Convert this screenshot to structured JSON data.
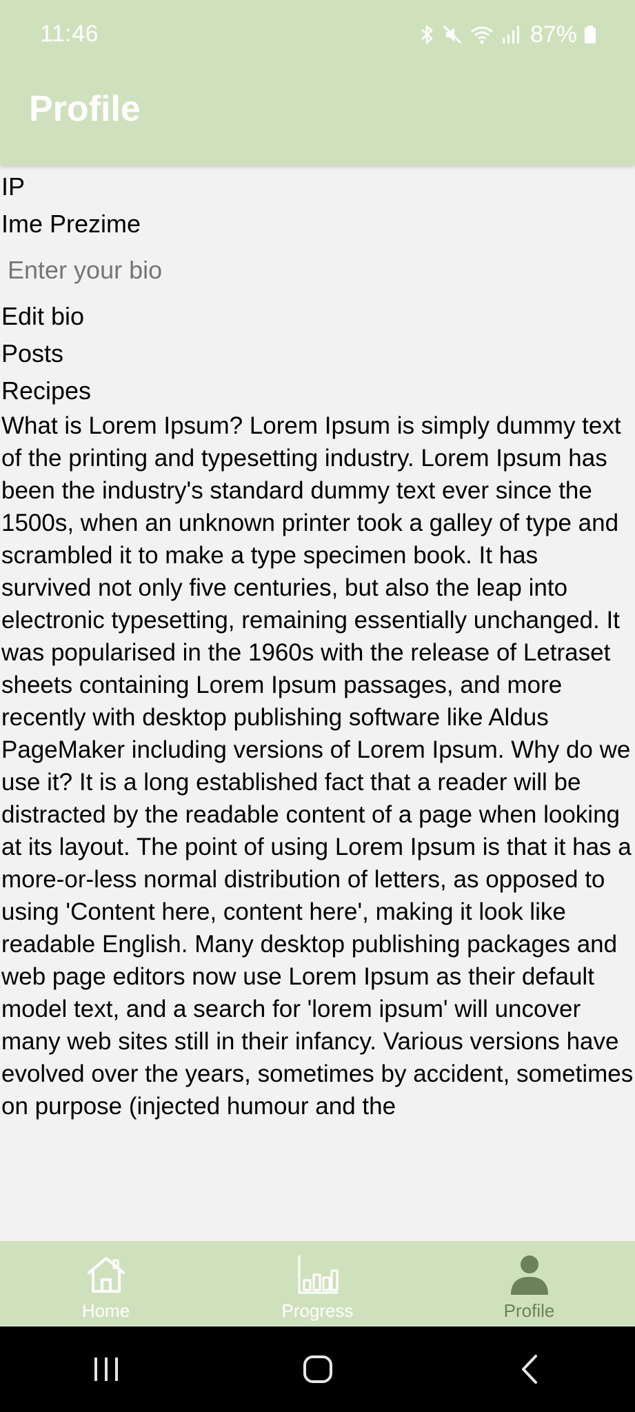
{
  "status_bar": {
    "time": "11:46",
    "battery": "87%"
  },
  "header": {
    "title": "Profile"
  },
  "profile": {
    "initials": "IP",
    "name": "Ime Prezime",
    "bio_placeholder": "Enter your bio",
    "bio_value": "",
    "edit_bio_label": "Edit bio",
    "posts_label": "Posts",
    "recipes_label": "Recipes",
    "body_text": "What is Lorem Ipsum? Lorem Ipsum is simply dummy text of the printing and typesetting industry. Lorem Ipsum has been the industry's standard dummy text ever since the 1500s, when an unknown printer took a galley of type and scrambled it to make a type specimen book. It has survived not only five centuries, but also the leap into electronic typesetting, remaining essentially unchanged. It was popularised in the 1960s with the release of Letraset sheets containing Lorem Ipsum passages, and more recently with desktop publishing software like Aldus PageMaker including versions of Lorem Ipsum. Why do we use it? It is a long established fact that a reader will be distracted by the readable content of a page when looking at its layout. The point of using Lorem Ipsum is that it has a more-or-less normal distribution of letters, as opposed to using 'Content here, content here', making it look like readable English. Many desktop publishing packages and web page editors now use Lorem Ipsum as their default model text, and a search for 'lorem ipsum' will uncover many web sites still in their infancy. Various versions have evolved over the years, sometimes by accident, sometimes on purpose (injected humour and the"
  },
  "bottom_nav": {
    "items": [
      {
        "label": "Home",
        "icon": "home-icon",
        "active": false
      },
      {
        "label": "Progress",
        "icon": "bar-chart-icon",
        "active": false
      },
      {
        "label": "Profile",
        "icon": "person-icon",
        "active": true
      }
    ]
  },
  "colors": {
    "accent": "#cfe1bc",
    "active_nav": "#6b805b",
    "inactive_nav": "#ffffff",
    "background": "#f2f2f2"
  }
}
